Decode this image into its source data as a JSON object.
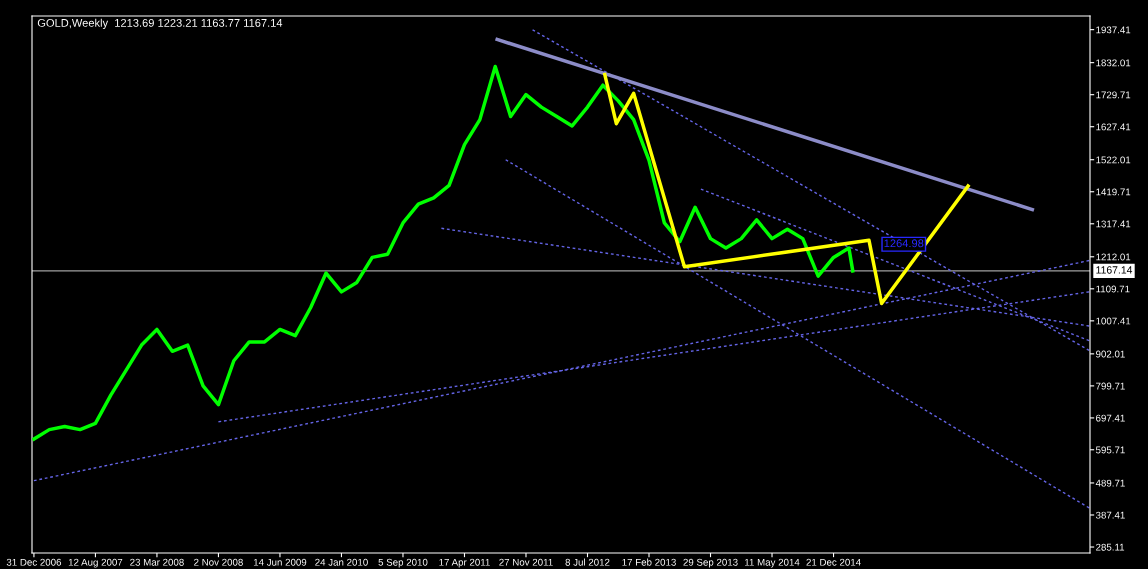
{
  "chart_data": {
    "type": "line",
    "title": "GOLD,Weekly  1213.69 1223.21 1163.77 1167.14",
    "xlim": [
      "2006-12-24",
      "2017-07-12"
    ],
    "xticks": [
      {
        "value": "2006-12-31",
        "label": "31 Dec 2006"
      },
      {
        "value": "2007-08-12",
        "label": "12 Aug 2007"
      },
      {
        "value": "2008-03-23",
        "label": "23 Mar 2008"
      },
      {
        "value": "2008-11-02",
        "label": "2 Nov 2008"
      },
      {
        "value": "2009-06-14",
        "label": "14 Jun 2009"
      },
      {
        "value": "2010-01-24",
        "label": "24 Jan 2010"
      },
      {
        "value": "2010-09-05",
        "label": "5 Sep 2010"
      },
      {
        "value": "2011-04-17",
        "label": "17 Apr 2011"
      },
      {
        "value": "2011-11-27",
        "label": "27 Nov 2011"
      },
      {
        "value": "2012-07-08",
        "label": "8 Jul 2012"
      },
      {
        "value": "2013-02-17",
        "label": "17 Feb 2013"
      },
      {
        "value": "2013-09-29",
        "label": "29 Sep 2013"
      },
      {
        "value": "2014-05-11",
        "label": "11 May 2014"
      },
      {
        "value": "2014-12-21",
        "label": "21 Dec 2014"
      }
    ],
    "ylim": [
      266,
      1981
    ],
    "yticks": [
      {
        "value": 285.11,
        "label": "285.11"
      },
      {
        "value": 387.41,
        "label": "387.41"
      },
      {
        "value": 489.71,
        "label": "489.71"
      },
      {
        "value": 595.71,
        "label": "595.71"
      },
      {
        "value": 697.41,
        "label": "697.41"
      },
      {
        "value": 799.71,
        "label": "799.71"
      },
      {
        "value": 902.01,
        "label": "902.01"
      },
      {
        "value": 1007.41,
        "label": "1007.41"
      },
      {
        "value": 1109.71,
        "label": "1109.71"
      },
      {
        "value": 1212.01,
        "label": "1212.01"
      },
      {
        "value": 1317.41,
        "label": "1317.41"
      },
      {
        "value": 1419.71,
        "label": "1419.71"
      },
      {
        "value": 1522.01,
        "label": "1522.01"
      },
      {
        "value": 1627.41,
        "label": "1627.41"
      },
      {
        "value": 1729.71,
        "label": "1729.71"
      },
      {
        "value": 1832.01,
        "label": "1832.01"
      },
      {
        "value": 1937.41,
        "label": "1937.41"
      }
    ],
    "grid": false,
    "legend": false,
    "marker": "none",
    "line_style": "solid",
    "series": [
      {
        "color": "#00ff00",
        "x": [
          "2006-12-31",
          "2007-02-25",
          "2007-04-22",
          "2007-06-17",
          "2007-08-12",
          "2007-10-07",
          "2007-12-02",
          "2008-01-27",
          "2008-03-23",
          "2008-05-18",
          "2008-07-13",
          "2008-09-07",
          "2008-11-02",
          "2008-12-28",
          "2009-02-22",
          "2009-04-19",
          "2009-06-14",
          "2009-08-09",
          "2009-10-04",
          "2009-11-29",
          "2010-01-24",
          "2010-03-21",
          "2010-05-16",
          "2010-07-11",
          "2010-09-05",
          "2010-10-31",
          "2010-12-26",
          "2011-02-20",
          "2011-04-17",
          "2011-06-12",
          "2011-08-07",
          "2011-10-02",
          "2011-11-27",
          "2012-01-22",
          "2012-03-18",
          "2012-05-13",
          "2012-07-08",
          "2012-09-02",
          "2012-10-28",
          "2012-12-23",
          "2013-02-17",
          "2013-04-14",
          "2013-06-09",
          "2013-08-04",
          "2013-09-29",
          "2013-11-24",
          "2014-01-19",
          "2014-03-16",
          "2014-05-11",
          "2014-07-06",
          "2014-08-31",
          "2014-10-26",
          "2014-12-21",
          "2015-02-15",
          "2015-03-01"
        ],
        "values": [
          630,
          660,
          670,
          660,
          680,
          770,
          850,
          930,
          980,
          910,
          930,
          800,
          740,
          880,
          940,
          940,
          980,
          960,
          1050,
          1160,
          1100,
          1130,
          1210,
          1220,
          1320,
          1380,
          1400,
          1440,
          1570,
          1650,
          1820,
          1660,
          1730,
          1690,
          1660,
          1630,
          1690,
          1760,
          1710,
          1650,
          1520,
          1320,
          1260,
          1370,
          1270,
          1240,
          1270,
          1330,
          1270,
          1300,
          1270,
          1150,
          1210,
          1240,
          1167
        ]
      },
      {
        "color": "#8c8cc8",
        "x": [
          "2011-08-14",
          "2016-12-14"
        ],
        "values": [
          1906,
          1363
        ]
      },
      {
        "color": "#ffff00",
        "x": [
          "2012-09-09",
          "2012-10-21",
          "2012-12-23",
          "2013-06-26",
          "2015-04-29",
          "2015-06-14",
          "2016-04-24"
        ],
        "values": [
          1794,
          1637,
          1734,
          1180,
          1265,
          1063,
          1438
        ]
      },
      {
        "color": "#6464e6",
        "line_style": "dashed",
        "x": [
          "2006-12-31",
          "2017-07-09"
        ],
        "values": [
          497,
          1200
        ]
      },
      {
        "color": "#6464e6",
        "line_style": "dashed",
        "x": [
          "2008-11-02",
          "2017-07-09"
        ],
        "values": [
          685,
          1100
        ]
      },
      {
        "color": "#6464e6",
        "line_style": "dashed",
        "x": [
          "2011-01-23",
          "2017-07-09"
        ],
        "values": [
          1303,
          991
        ]
      },
      {
        "color": "#6464e6",
        "line_style": "dashed",
        "x": [
          "2011-09-14",
          "2017-07-09"
        ],
        "values": [
          1522,
          410
        ]
      },
      {
        "color": "#6464e6",
        "line_style": "dashed",
        "x": [
          "2011-12-21",
          "2017-07-09"
        ],
        "values": [
          1937,
          913
        ]
      },
      {
        "color": "#6464e6",
        "line_style": "dashed",
        "x": [
          "2013-08-25",
          "2017-07-09"
        ],
        "values": [
          1428,
          944
        ]
      }
    ],
    "ref_lines": [
      {
        "axis": "y",
        "value": 1167.14,
        "label": "1167.14",
        "color": "#a0a0a0"
      }
    ],
    "annotations": [
      "1264.98"
    ]
  }
}
